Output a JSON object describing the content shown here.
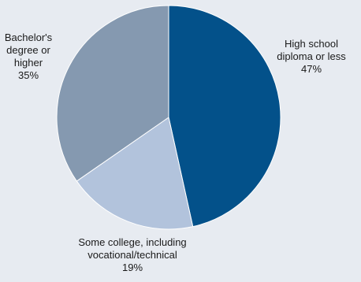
{
  "chart_data": {
    "type": "pie",
    "title": "",
    "start_angle_deg": 0,
    "direction": "clockwise",
    "slices": [
      {
        "label_lines": [
          "High school",
          "diploma or less",
          "47%"
        ],
        "label": "High school diploma or less",
        "value": 47,
        "value_label": "47%",
        "color": "#03518a"
      },
      {
        "label_lines": [
          "Some college, including",
          "vocational/technical",
          "19%"
        ],
        "label": "Some college, including vocational/technical",
        "value": 19,
        "value_label": "19%",
        "color": "#b2c3dc"
      },
      {
        "label_lines": [
          "Bachelor's",
          "degree or",
          "higher",
          "35%"
        ],
        "label": "Bachelor's degree or higher",
        "value": 35,
        "value_label": "35%",
        "color": "#8599b0"
      }
    ]
  }
}
